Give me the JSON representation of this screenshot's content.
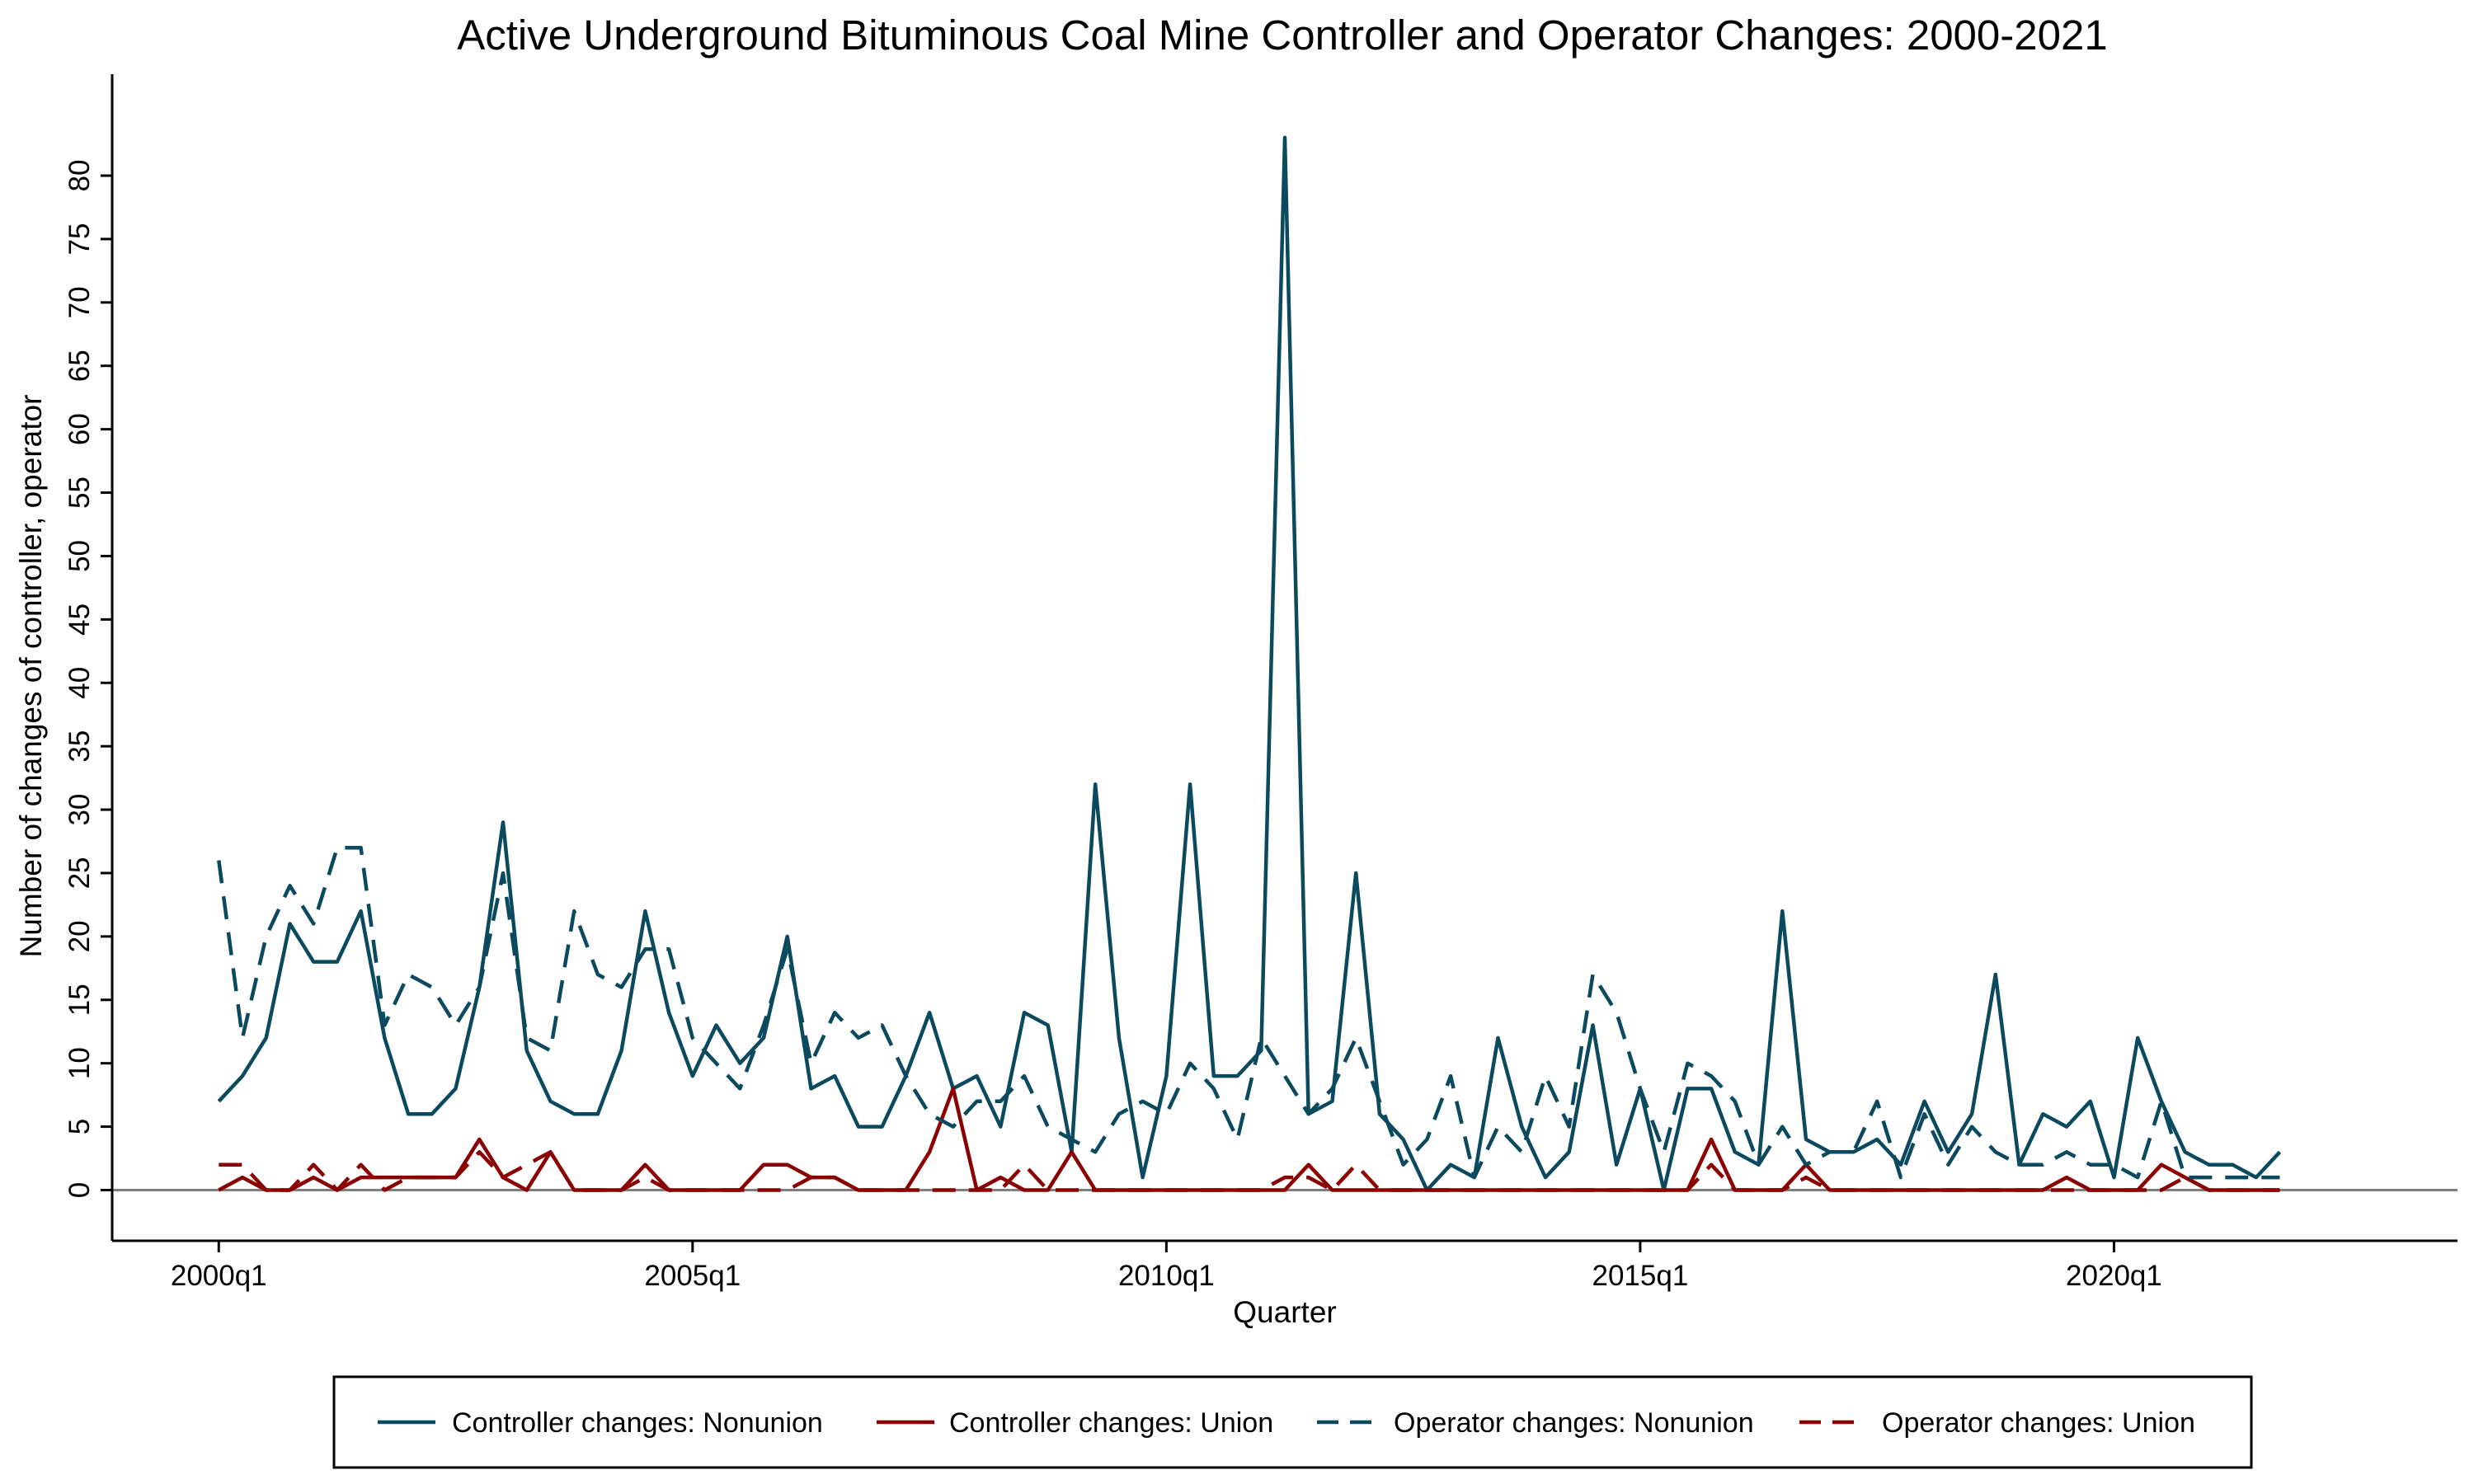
{
  "chart_data": {
    "type": "line",
    "title": "Active Underground Bituminous Coal Mine Controller and Operator Changes: 2000-2021",
    "xlabel": "Quarter",
    "ylabel": "Number of changes of controller, operator",
    "x_start": "2000q1",
    "x_ticks": [
      "2000q1",
      "2005q1",
      "2010q1",
      "2015q1",
      "2020q1"
    ],
    "y_ticks": [
      0,
      5,
      10,
      15,
      20,
      25,
      30,
      35,
      40,
      45,
      50,
      55,
      60,
      65,
      70,
      75,
      80
    ],
    "ylim": [
      -4,
      88
    ],
    "xlim_quarters": [
      -4.5,
      94.5
    ],
    "reference_line_y": 0,
    "grid": false,
    "legend_position": "bottom",
    "series": [
      {
        "name": "Controller changes: Nonunion",
        "color": "#0b4a5e",
        "dash": "solid",
        "values": [
          7,
          9,
          12,
          21,
          18,
          18,
          22,
          12,
          6,
          6,
          8,
          16,
          29,
          11,
          7,
          6,
          6,
          11,
          22,
          14,
          9,
          13,
          10,
          12,
          20,
          8,
          9,
          5,
          5,
          9,
          14,
          8,
          9,
          5,
          14,
          13,
          3,
          32,
          12,
          1,
          9,
          32,
          9,
          9,
          11,
          83,
          6,
          7,
          25,
          6,
          4,
          0,
          2,
          1,
          12,
          5,
          1,
          3,
          13,
          2,
          8,
          0,
          8,
          8,
          3,
          2,
          22,
          4,
          3,
          3,
          4,
          2,
          7,
          3,
          6,
          17,
          2,
          6,
          5,
          7,
          1,
          12,
          7,
          3,
          2,
          2,
          1,
          3
        ]
      },
      {
        "name": "Controller changes: Union",
        "color": "#8b0000",
        "dash": "solid",
        "values": [
          0,
          1,
          0,
          0,
          1,
          0,
          1,
          1,
          1,
          1,
          1,
          4,
          1,
          0,
          3,
          0,
          0,
          0,
          2,
          0,
          0,
          0,
          0,
          2,
          2,
          1,
          1,
          0,
          0,
          0,
          3,
          8,
          0,
          1,
          0,
          0,
          3,
          0,
          0,
          0,
          0,
          0,
          0,
          0,
          0,
          0,
          2,
          0,
          0,
          0,
          0,
          0,
          0,
          0,
          0,
          0,
          0,
          0,
          0,
          0,
          0,
          0,
          0,
          4,
          0,
          0,
          0,
          2,
          0,
          0,
          0,
          0,
          0,
          0,
          0,
          0,
          0,
          0,
          1,
          0,
          0,
          0,
          2,
          1,
          0,
          0,
          0,
          0
        ]
      },
      {
        "name": "Operator changes: Nonunion",
        "color": "#0b4a5e",
        "dash": "dashed",
        "values": [
          26,
          12,
          20,
          24,
          21,
          27,
          27,
          13,
          17,
          16,
          13,
          16,
          25,
          12,
          11,
          22,
          17,
          16,
          19,
          19,
          12,
          10,
          8,
          13,
          19,
          10,
          14,
          12,
          13,
          9,
          6,
          5,
          7,
          7,
          9,
          5,
          4,
          3,
          6,
          7,
          6,
          10,
          8,
          4,
          12,
          9,
          6,
          8,
          12,
          7,
          2,
          4,
          9,
          1,
          5,
          3,
          9,
          5,
          17,
          14,
          8,
          3,
          10,
          9,
          7,
          2,
          5,
          2,
          3,
          3,
          7,
          1,
          6,
          2,
          5,
          3,
          2,
          2,
          3,
          2,
          2,
          1,
          7,
          1,
          1,
          1,
          1,
          1
        ]
      },
      {
        "name": "Operator changes: Union",
        "color": "#8b0000",
        "dash": "dashed",
        "values": [
          2,
          2,
          0,
          0,
          2,
          0,
          2,
          0,
          1,
          1,
          1,
          3,
          1,
          2,
          3,
          0,
          0,
          0,
          1,
          0,
          0,
          0,
          0,
          0,
          0,
          1,
          1,
          0,
          0,
          0,
          0,
          0,
          0,
          0,
          2,
          0,
          0,
          0,
          0,
          0,
          0,
          0,
          0,
          0,
          0,
          1,
          1,
          0,
          2,
          0,
          0,
          0,
          0,
          0,
          0,
          0,
          0,
          0,
          0,
          0,
          0,
          0,
          0,
          2,
          0,
          0,
          0,
          1,
          0,
          0,
          0,
          0,
          0,
          0,
          0,
          0,
          0,
          0,
          0,
          0,
          0,
          0,
          0,
          1,
          0,
          0,
          0,
          0
        ]
      }
    ]
  }
}
